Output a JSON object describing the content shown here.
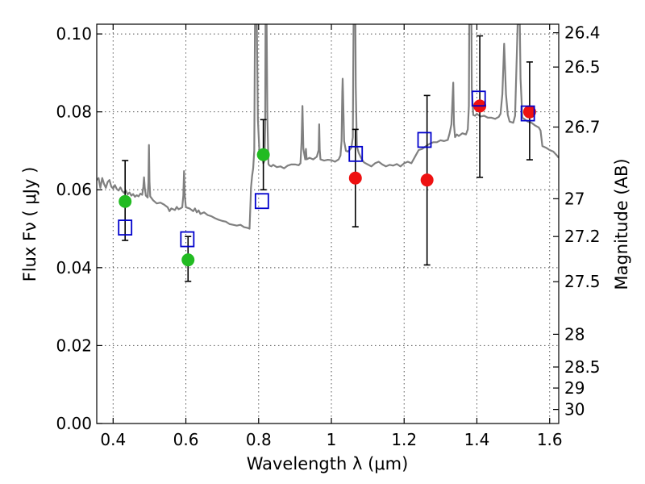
{
  "chart_data": {
    "type": "scatter",
    "title": "",
    "xlabel": "Wavelength  λ (μm)",
    "ylabel": "Flux  Fν  ( μJy )",
    "ylabel_right": "Magnitude (AB)",
    "xlim": [
      0.355,
      1.625
    ],
    "ylim": [
      0.0,
      0.1025
    ],
    "x_ticks": [
      0.4,
      0.6,
      0.8,
      1.0,
      1.2,
      1.4,
      1.6
    ],
    "x_tick_labels": [
      "0.4",
      "0.6",
      "0.8",
      "1",
      "1.2",
      "1.4",
      "1.6"
    ],
    "y_ticks": [
      0.0,
      0.02,
      0.04,
      0.06,
      0.08,
      0.1
    ],
    "y_tick_labels": [
      "0.00",
      "0.02",
      "0.04",
      "0.06",
      "0.08",
      "0.10"
    ],
    "right_ticks": [
      {
        "label": "26.4",
        "flux": 0.1003
      },
      {
        "label": "26.5",
        "flux": 0.0915
      },
      {
        "label": "26.7",
        "flux": 0.0761
      },
      {
        "label": "27",
        "flux": 0.0577
      },
      {
        "label": "27.2",
        "flux": 0.048
      },
      {
        "label": "27.5",
        "flux": 0.0364
      },
      {
        "label": "28",
        "flux": 0.0229
      },
      {
        "label": "28.5",
        "flux": 0.0145
      },
      {
        "label": "29",
        "flux": 0.0091
      },
      {
        "label": "30",
        "flux": 0.0036
      }
    ],
    "grid": true,
    "colors": {
      "spectrum": "#808080",
      "green": "#22bb22",
      "red": "#ee1111",
      "model_box": "#0000cc",
      "errorbar": "#000000"
    },
    "series": [
      {
        "name": "SED model spectrum",
        "kind": "line",
        "points": [
          [
            0.355,
            0.0625
          ],
          [
            0.36,
            0.063
          ],
          [
            0.365,
            0.0605
          ],
          [
            0.37,
            0.063
          ],
          [
            0.375,
            0.0615
          ],
          [
            0.38,
            0.0605
          ],
          [
            0.385,
            0.062
          ],
          [
            0.39,
            0.0625
          ],
          [
            0.395,
            0.0608
          ],
          [
            0.4,
            0.0603
          ],
          [
            0.405,
            0.0612
          ],
          [
            0.41,
            0.0602
          ],
          [
            0.415,
            0.0598
          ],
          [
            0.42,
            0.0606
          ],
          [
            0.425,
            0.0597
          ],
          [
            0.43,
            0.0592
          ],
          [
            0.435,
            0.0598
          ],
          [
            0.44,
            0.0588
          ],
          [
            0.445,
            0.0593
          ],
          [
            0.45,
            0.0585
          ],
          [
            0.455,
            0.0589
          ],
          [
            0.46,
            0.0582
          ],
          [
            0.465,
            0.0586
          ],
          [
            0.47,
            0.0583
          ],
          [
            0.475,
            0.059
          ],
          [
            0.48,
            0.0587
          ],
          [
            0.483,
            0.0607
          ],
          [
            0.485,
            0.0632
          ],
          [
            0.487,
            0.0605
          ],
          [
            0.49,
            0.0585
          ],
          [
            0.495,
            0.058
          ],
          [
            0.497,
            0.0618
          ],
          [
            0.4985,
            0.0715
          ],
          [
            0.5,
            0.0621
          ],
          [
            0.502,
            0.0583
          ],
          [
            0.51,
            0.0573
          ],
          [
            0.52,
            0.0565
          ],
          [
            0.53,
            0.0567
          ],
          [
            0.54,
            0.0562
          ],
          [
            0.55,
            0.0555
          ],
          [
            0.555,
            0.0545
          ],
          [
            0.56,
            0.0552
          ],
          [
            0.57,
            0.0548
          ],
          [
            0.575,
            0.0556
          ],
          [
            0.58,
            0.055
          ],
          [
            0.585,
            0.0552
          ],
          [
            0.59,
            0.0555
          ],
          [
            0.593,
            0.0585
          ],
          [
            0.595,
            0.0648
          ],
          [
            0.597,
            0.0585
          ],
          [
            0.6,
            0.0555
          ],
          [
            0.61,
            0.0552
          ],
          [
            0.62,
            0.0545
          ],
          [
            0.625,
            0.0552
          ],
          [
            0.63,
            0.0542
          ],
          [
            0.635,
            0.0547
          ],
          [
            0.64,
            0.0538
          ],
          [
            0.65,
            0.0542
          ],
          [
            0.66,
            0.0535
          ],
          [
            0.67,
            0.0532
          ],
          [
            0.68,
            0.0527
          ],
          [
            0.69,
            0.0523
          ],
          [
            0.7,
            0.052
          ],
          [
            0.71,
            0.0518
          ],
          [
            0.72,
            0.0512
          ],
          [
            0.73,
            0.051
          ],
          [
            0.74,
            0.0508
          ],
          [
            0.75,
            0.051
          ],
          [
            0.76,
            0.0504
          ],
          [
            0.77,
            0.0502
          ],
          [
            0.775,
            0.05
          ],
          [
            0.778,
            0.0575
          ],
          [
            0.779,
            0.0605
          ],
          [
            0.782,
            0.0635
          ],
          [
            0.785,
            0.0655
          ],
          [
            0.788,
            0.07
          ],
          [
            0.79,
            0.1025
          ],
          [
            0.795,
            0.1025
          ],
          [
            0.798,
            0.078
          ],
          [
            0.802,
            0.07
          ],
          [
            0.805,
            0.0685
          ],
          [
            0.81,
            0.0686
          ],
          [
            0.813,
            0.0668
          ],
          [
            0.816,
            0.0674
          ],
          [
            0.818,
            0.076
          ],
          [
            0.819,
            0.1025
          ],
          [
            0.822,
            0.1025
          ],
          [
            0.824,
            0.079
          ],
          [
            0.827,
            0.0666
          ],
          [
            0.83,
            0.0662
          ],
          [
            0.835,
            0.066
          ],
          [
            0.84,
            0.0664
          ],
          [
            0.85,
            0.0658
          ],
          [
            0.86,
            0.066
          ],
          [
            0.87,
            0.0655
          ],
          [
            0.88,
            0.0662
          ],
          [
            0.89,
            0.0665
          ],
          [
            0.9,
            0.0665
          ],
          [
            0.91,
            0.0663
          ],
          [
            0.915,
            0.0668
          ],
          [
            0.918,
            0.0722
          ],
          [
            0.9205,
            0.0815
          ],
          [
            0.923,
            0.0705
          ],
          [
            0.928,
            0.0678
          ],
          [
            0.93,
            0.0705
          ],
          [
            0.932,
            0.0678
          ],
          [
            0.94,
            0.0682
          ],
          [
            0.95,
            0.0678
          ],
          [
            0.96,
            0.0685
          ],
          [
            0.965,
            0.0702
          ],
          [
            0.9665,
            0.0768
          ],
          [
            0.968,
            0.0702
          ],
          [
            0.97,
            0.0678
          ],
          [
            0.98,
            0.0675
          ],
          [
            0.99,
            0.0677
          ],
          [
            1.0,
            0.0676
          ],
          [
            1.01,
            0.0672
          ],
          [
            1.02,
            0.0678
          ],
          [
            1.025,
            0.0688
          ],
          [
            1.028,
            0.0725
          ],
          [
            1.03,
            0.085
          ],
          [
            1.031,
            0.0885
          ],
          [
            1.032,
            0.085
          ],
          [
            1.035,
            0.0725
          ],
          [
            1.04,
            0.07
          ],
          [
            1.045,
            0.0698
          ],
          [
            1.05,
            0.0702
          ],
          [
            1.055,
            0.0708
          ],
          [
            1.059,
            0.0735
          ],
          [
            1.06,
            0.0895
          ],
          [
            1.061,
            0.1025
          ],
          [
            1.066,
            0.1025
          ],
          [
            1.067,
            0.0865
          ],
          [
            1.07,
            0.0712
          ],
          [
            1.075,
            0.0695
          ],
          [
            1.08,
            0.0685
          ],
          [
            1.085,
            0.0676
          ],
          [
            1.09,
            0.067
          ],
          [
            1.1,
            0.0665
          ],
          [
            1.11,
            0.066
          ],
          [
            1.12,
            0.0668
          ],
          [
            1.13,
            0.0672
          ],
          [
            1.14,
            0.0665
          ],
          [
            1.15,
            0.066
          ],
          [
            1.16,
            0.0664
          ],
          [
            1.17,
            0.0662
          ],
          [
            1.18,
            0.0666
          ],
          [
            1.19,
            0.066
          ],
          [
            1.2,
            0.0668
          ],
          [
            1.21,
            0.0672
          ],
          [
            1.22,
            0.0668
          ],
          [
            1.23,
            0.0685
          ],
          [
            1.24,
            0.0702
          ],
          [
            1.25,
            0.0705
          ],
          [
            1.26,
            0.0712
          ],
          [
            1.27,
            0.0718
          ],
          [
            1.28,
            0.0722
          ],
          [
            1.29,
            0.0722
          ],
          [
            1.3,
            0.0727
          ],
          [
            1.31,
            0.0725
          ],
          [
            1.32,
            0.0728
          ],
          [
            1.325,
            0.0745
          ],
          [
            1.33,
            0.0768
          ],
          [
            1.335,
            0.0875
          ],
          [
            1.337,
            0.0768
          ],
          [
            1.34,
            0.0735
          ],
          [
            1.345,
            0.0742
          ],
          [
            1.35,
            0.0738
          ],
          [
            1.36,
            0.0745
          ],
          [
            1.37,
            0.0742
          ],
          [
            1.375,
            0.0755
          ],
          [
            1.378,
            0.0815
          ],
          [
            1.379,
            0.1025
          ],
          [
            1.385,
            0.1025
          ],
          [
            1.386,
            0.086
          ],
          [
            1.39,
            0.0792
          ],
          [
            1.395,
            0.079
          ],
          [
            1.4,
            0.0795
          ],
          [
            1.41,
            0.0788
          ],
          [
            1.42,
            0.079
          ],
          [
            1.43,
            0.0785
          ],
          [
            1.44,
            0.0785
          ],
          [
            1.45,
            0.0782
          ],
          [
            1.46,
            0.0787
          ],
          [
            1.465,
            0.0795
          ],
          [
            1.47,
            0.0845
          ],
          [
            1.475,
            0.0975
          ],
          [
            1.48,
            0.0845
          ],
          [
            1.485,
            0.0792
          ],
          [
            1.49,
            0.0775
          ],
          [
            1.5,
            0.0772
          ],
          [
            1.505,
            0.079
          ],
          [
            1.51,
            0.0955
          ],
          [
            1.512,
            0.1025
          ],
          [
            1.518,
            0.1025
          ],
          [
            1.52,
            0.0885
          ],
          [
            1.525,
            0.0785
          ],
          [
            1.53,
            0.0782
          ],
          [
            1.54,
            0.0775
          ],
          [
            1.55,
            0.0772
          ],
          [
            1.56,
            0.0765
          ],
          [
            1.57,
            0.076
          ],
          [
            1.575,
            0.0752
          ],
          [
            1.58,
            0.0712
          ],
          [
            1.585,
            0.071
          ],
          [
            1.59,
            0.0708
          ],
          [
            1.6,
            0.0702
          ],
          [
            1.61,
            0.0698
          ],
          [
            1.62,
            0.0688
          ],
          [
            1.625,
            0.0682
          ]
        ]
      },
      {
        "name": "Observed photometry (green)",
        "kind": "points",
        "points": [
          {
            "x": 0.433,
            "y": 0.057,
            "err_lo": 0.047,
            "err_hi": 0.0675
          },
          {
            "x": 0.606,
            "y": 0.042,
            "err_lo": 0.0365,
            "err_hi": 0.048
          },
          {
            "x": 0.813,
            "y": 0.069,
            "err_lo": 0.06,
            "err_hi": 0.078
          }
        ]
      },
      {
        "name": "Observed photometry (red)",
        "kind": "points",
        "points": [
          {
            "x": 1.066,
            "y": 0.063,
            "err_lo": 0.0505,
            "err_hi": 0.0755
          },
          {
            "x": 1.263,
            "y": 0.0625,
            "err_lo": 0.0407,
            "err_hi": 0.0842
          },
          {
            "x": 1.408,
            "y": 0.0815,
            "err_lo": 0.0632,
            "err_hi": 0.0995
          },
          {
            "x": 1.545,
            "y": 0.08,
            "err_lo": 0.0677,
            "err_hi": 0.0928
          }
        ]
      },
      {
        "name": "Model synthetic photometry",
        "kind": "open-squares",
        "points": [
          {
            "x": 0.433,
            "y": 0.0503
          },
          {
            "x": 0.604,
            "y": 0.0473
          },
          {
            "x": 0.809,
            "y": 0.0571
          },
          {
            "x": 1.067,
            "y": 0.0692
          },
          {
            "x": 1.256,
            "y": 0.0728
          },
          {
            "x": 1.405,
            "y": 0.0834
          },
          {
            "x": 1.54,
            "y": 0.0796
          }
        ]
      }
    ]
  }
}
